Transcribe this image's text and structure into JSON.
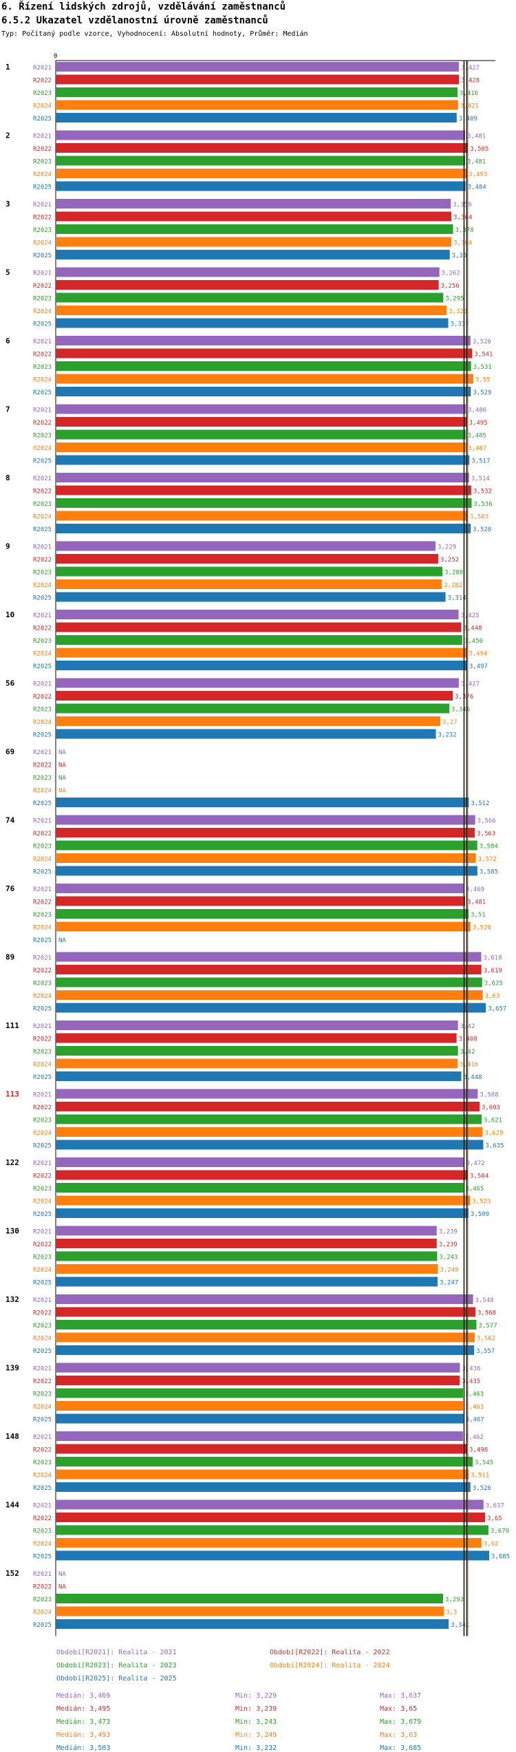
{
  "header": {
    "title": "6. Řízení lidských zdrojů, vzdělávání zaměstnanců",
    "subtitle": "6.5.2 Ukazatel vzdělanostní úrovně zaměstnanců",
    "type_line": "Typ: Počítaný podle vzorce, Vyhodnocení: Absolutní hodnoty, Průměr: Medián"
  },
  "colors": {
    "R2021": "#9467bd",
    "R2022": "#d62728",
    "R2023": "#2ca02c",
    "R2024": "#ff7f0e",
    "R2025": "#1f77b4",
    "highlight_group": "#d62728"
  },
  "chart_data": {
    "type": "bar",
    "orientation": "horizontal",
    "axis_zero_label": "0",
    "x_range": [
      0,
      3.685
    ],
    "missing_label": "NA",
    "highlight_category": "113",
    "series_names": [
      "R2021",
      "R2022",
      "R2023",
      "R2024",
      "R2025"
    ],
    "categories": [
      "1",
      "2",
      "3",
      "5",
      "6",
      "7",
      "8",
      "9",
      "10",
      "56",
      "69",
      "74",
      "76",
      "89",
      "111",
      "113",
      "122",
      "130",
      "132",
      "139",
      "148",
      "144",
      "152"
    ],
    "series": [
      {
        "name": "R2021",
        "values": [
          3.427,
          3.481,
          3.359,
          3.262,
          3.526,
          3.486,
          3.514,
          3.229,
          3.425,
          3.427,
          null,
          3.566,
          3.469,
          3.618,
          3.42,
          3.588,
          3.472,
          3.239,
          3.548,
          3.436,
          3.462,
          3.637,
          null
        ]
      },
      {
        "name": "R2022",
        "values": [
          3.428,
          3.505,
          3.364,
          3.256,
          3.541,
          3.495,
          3.532,
          3.252,
          3.448,
          3.376,
          null,
          3.563,
          3.481,
          3.619,
          3.408,
          3.603,
          3.504,
          3.239,
          3.568,
          3.435,
          3.498,
          3.65,
          null
        ]
      },
      {
        "name": "R2023",
        "values": [
          3.416,
          3.481,
          3.378,
          3.295,
          3.531,
          3.485,
          3.536,
          3.288,
          3.456,
          3.346,
          null,
          3.584,
          3.51,
          3.625,
          3.42,
          3.621,
          3.465,
          3.243,
          3.577,
          3.463,
          3.545,
          3.679,
          3.293
        ]
      },
      {
        "name": "R2024",
        "values": [
          3.421,
          3.493,
          3.364,
          3.323,
          3.55,
          3.487,
          3.503,
          3.282,
          3.494,
          3.27,
          null,
          3.572,
          3.526,
          3.63,
          3.416,
          3.629,
          3.523,
          3.249,
          3.562,
          3.463,
          3.511,
          3.62,
          3.3
        ]
      },
      {
        "name": "R2025",
        "values": [
          3.409,
          3.484,
          3.35,
          3.337,
          3.529,
          3.517,
          3.528,
          3.314,
          3.497,
          3.232,
          3.512,
          3.585,
          null,
          3.657,
          3.448,
          3.635,
          3.509,
          3.247,
          3.557,
          3.467,
          3.526,
          3.685,
          3.341
        ]
      }
    ],
    "reference_lines": [
      3.469,
      3.473,
      3.493,
      3.495,
      3.503
    ],
    "legend": [
      {
        "series": "R2021",
        "label": "Období[R2021]: Realita - 2021"
      },
      {
        "series": "R2022",
        "label": "Období[R2022]: Realita - 2022"
      },
      {
        "series": "R2023",
        "label": "Období[R2023]: Realita - 2023"
      },
      {
        "series": "R2024",
        "label": "Období[R2024]: Realita - 2024"
      },
      {
        "series": "R2025",
        "label": "Období[R2025]: Realita - 2025"
      }
    ],
    "stats": [
      {
        "series": "R2021",
        "median": "Medián: 3,469",
        "min": "Min: 3,229",
        "max": "Max: 3,637"
      },
      {
        "series": "R2022",
        "median": "Medián: 3,495",
        "min": "Min: 3,239",
        "max": "Max: 3,65"
      },
      {
        "series": "R2023",
        "median": "Medián: 3,473",
        "min": "Min: 3,243",
        "max": "Max: 3,679"
      },
      {
        "series": "R2024",
        "median": "Medián: 3,493",
        "min": "Min: 3,249",
        "max": "Max: 3,63"
      },
      {
        "series": "R2025",
        "median": "Medián: 3,503",
        "min": "Min: 3,232",
        "max": "Max: 3,685"
      }
    ]
  }
}
